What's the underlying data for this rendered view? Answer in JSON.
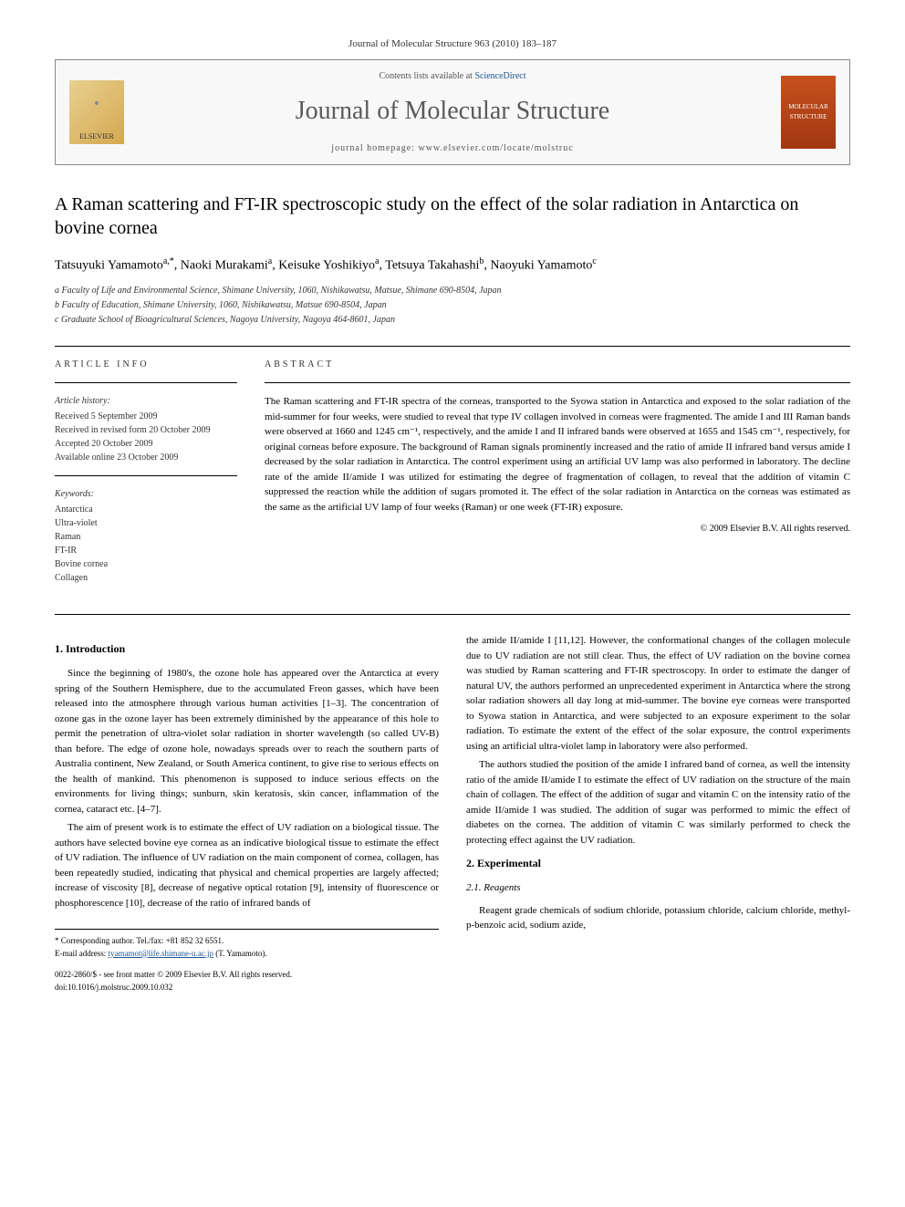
{
  "journal_header": "Journal of Molecular Structure 963 (2010) 183–187",
  "contents_prefix": "Contents lists available at ",
  "contents_link": "ScienceDirect",
  "journal_name": "Journal of Molecular Structure",
  "homepage_label": "journal homepage: www.elsevier.com/locate/molstruc",
  "publisher_logo": "ELSEVIER",
  "cover_logo": "MOLECULAR STRUCTURE",
  "title": "A Raman scattering and FT-IR spectroscopic study on the effect of the solar radiation in Antarctica on bovine cornea",
  "authors_html": "Tatsuyuki Yamamoto",
  "author1": "Tatsuyuki Yamamoto",
  "author1_sup": "a,*",
  "author2": "Naoki Murakami",
  "author2_sup": "a",
  "author3": "Keisuke Yoshikiyo",
  "author3_sup": "a",
  "author4": "Tetsuya Takahashi",
  "author4_sup": "b",
  "author5": "Naoyuki Yamamoto",
  "author5_sup": "c",
  "affil_a": "a Faculty of Life and Environmental Science, Shimane University, 1060, Nishikawatsu, Matsue, Shimane 690-8504, Japan",
  "affil_b": "b Faculty of Education, Shimane University, 1060, Nishikawatsu, Matsue 690-8504, Japan",
  "affil_c": "c Graduate School of Bioagricultural Sciences, Nagoya University, Nagoya 464-8601, Japan",
  "info": {
    "heading": "ARTICLE INFO",
    "history_label": "Article history:",
    "received": "Received 5 September 2009",
    "revised": "Received in revised form 20 October 2009",
    "accepted": "Accepted 20 October 2009",
    "online": "Available online 23 October 2009",
    "keywords_label": "Keywords:",
    "kw1": "Antarctica",
    "kw2": "Ultra-violet",
    "kw3": "Raman",
    "kw4": "FT-IR",
    "kw5": "Bovine cornea",
    "kw6": "Collagen"
  },
  "abstract": {
    "heading": "ABSTRACT",
    "text": "The Raman scattering and FT-IR spectra of the corneas, transported to the Syowa station in Antarctica and exposed to the solar radiation of the mid-summer for four weeks, were studied to reveal that type IV collagen involved in corneas were fragmented. The amide I and III Raman bands were observed at 1660 and 1245 cm⁻¹, respectively, and the amide I and II infrared bands were observed at 1655 and 1545 cm⁻¹, respectively, for original corneas before exposure. The background of Raman signals prominently increased and the ratio of amide II infrared band versus amide I decreased by the solar radiation in Antarctica. The control experiment using an artificial UV lamp was also performed in laboratory. The decline rate of the amide II/amide I was utilized for estimating the degree of fragmentation of collagen, to reveal that the addition of vitamin C suppressed the reaction while the addition of sugars promoted it. The effect of the solar radiation in Antarctica on the corneas was estimated as the same as the artificial UV lamp of four weeks (Raman) or one week (FT-IR) exposure.",
    "copyright": "© 2009 Elsevier B.V. All rights reserved."
  },
  "sections": {
    "intro_heading": "1. Introduction",
    "intro_p1": "Since the beginning of 1980's, the ozone hole has appeared over the Antarctica at every spring of the Southern Hemisphere, due to the accumulated Freon gasses, which have been released into the atmosphere through various human activities [1–3]. The concentration of ozone gas in the ozone layer has been extremely diminished by the appearance of this hole to permit the penetration of ultra-violet solar radiation in shorter wavelength (so called UV-B) than before. The edge of ozone hole, nowadays spreads over to reach the southern parts of Australia continent, New Zealand, or South America continent, to give rise to serious effects on the health of mankind. This phenomenon is supposed to induce serious effects on the environments for living things; sunburn, skin keratosis, skin cancer, inflammation of the cornea, cataract etc. [4–7].",
    "intro_p2": "The aim of present work is to estimate the effect of UV radiation on a biological tissue. The authors have selected bovine eye cornea as an indicative biological tissue to estimate the effect of UV radiation. The influence of UV radiation on the main component of cornea, collagen, has been repeatedly studied, indicating that physical and chemical properties are largely affected; increase of viscosity [8], decrease of negative optical rotation [9], intensity of fluorescence or phosphorescence [10], decrease of the ratio of infrared bands of",
    "intro_p3": "the amide II/amide I [11,12]. However, the conformational changes of the collagen molecule due to UV radiation are not still clear. Thus, the effect of UV radiation on the bovine cornea was studied by Raman scattering and FT-IR spectroscopy. In order to estimate the danger of natural UV, the authors performed an unprecedented experiment in Antarctica where the strong solar radiation showers all day long at mid-summer. The bovine eye corneas were transported to Syowa station in Antarctica, and were subjected to an exposure experiment to the solar radiation. To estimate the extent of the effect of the solar exposure, the control experiments using an artificial ultra-violet lamp in laboratory were also performed.",
    "intro_p4": "The authors studied the position of the amide I infrared band of cornea, as well the intensity ratio of the amide II/amide I to estimate the effect of UV radiation on the structure of the main chain of collagen. The effect of the addition of sugar and vitamin C on the intensity ratio of the amide II/amide I was studied. The addition of sugar was performed to mimic the effect of diabetes on the cornea. The addition of vitamin C was similarly performed to check the protecting effect against the UV radiation.",
    "exp_heading": "2. Experimental",
    "reagents_heading": "2.1. Reagents",
    "reagents_p1": "Reagent grade chemicals of sodium chloride, potassium chloride, calcium chloride, methyl-p-benzoic acid, sodium azide,"
  },
  "footer": {
    "corresponding": "* Corresponding author. Tel./fax: +81 852 32 6551.",
    "email_label": "E-mail address: ",
    "email": "tyamamot@life.shimane-u.ac.jp",
    "email_suffix": " (T. Yamamoto).",
    "issn": "0022-2860/$ - see front matter © 2009 Elsevier B.V. All rights reserved.",
    "doi": "doi:10.1016/j.molstruc.2009.10.032"
  },
  "colors": {
    "link": "#1a5490",
    "text": "#000000",
    "muted": "#333333",
    "border": "#000000"
  }
}
